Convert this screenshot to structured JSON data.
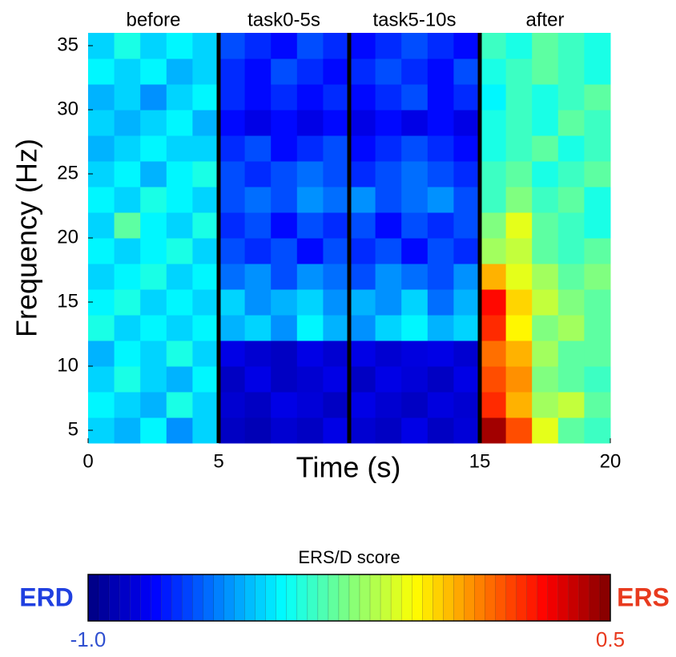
{
  "chart_data": {
    "type": "heatmap",
    "xlabel": "Time (s)",
    "ylabel": "Frequency (Hz)",
    "xlim": [
      0,
      20
    ],
    "ylim": [
      4,
      36
    ],
    "xticks": [
      0,
      5,
      15,
      20
    ],
    "yticks": [
      5,
      10,
      15,
      20,
      25,
      30,
      35
    ],
    "x": [
      0.5,
      1.5,
      2.5,
      3.5,
      4.5,
      5.5,
      6.5,
      7.5,
      8.5,
      9.5,
      10.5,
      11.5,
      12.5,
      13.5,
      14.5,
      15.5,
      16.5,
      17.5,
      18.5,
      19.5
    ],
    "y": [
      5,
      7,
      9,
      11,
      13,
      15,
      17,
      19,
      21,
      23,
      25,
      27,
      29,
      31,
      33,
      35
    ],
    "z": [
      [
        -0.5,
        -0.55,
        -0.45,
        -0.6,
        -0.5,
        -0.9,
        -0.92,
        -0.88,
        -0.9,
        -0.85,
        -0.88,
        -0.9,
        -0.85,
        -0.9,
        -0.87,
        0.45,
        0.2,
        -0.1,
        -0.3,
        -0.35
      ],
      [
        -0.45,
        -0.5,
        -0.55,
        -0.4,
        -0.5,
        -0.88,
        -0.9,
        -0.85,
        -0.87,
        -0.9,
        -0.85,
        -0.88,
        -0.9,
        -0.86,
        -0.88,
        0.25,
        0.05,
        -0.2,
        -0.15,
        -0.3
      ],
      [
        -0.5,
        -0.4,
        -0.5,
        -0.55,
        -0.45,
        -0.9,
        -0.85,
        -0.9,
        -0.88,
        -0.85,
        -0.9,
        -0.85,
        -0.87,
        -0.9,
        -0.85,
        0.2,
        0.1,
        -0.25,
        -0.3,
        -0.35
      ],
      [
        -0.55,
        -0.45,
        -0.5,
        -0.4,
        -0.5,
        -0.85,
        -0.88,
        -0.9,
        -0.85,
        -0.88,
        -0.85,
        -0.88,
        -0.86,
        -0.85,
        -0.88,
        0.15,
        0.05,
        -0.2,
        -0.3,
        -0.3
      ],
      [
        -0.4,
        -0.5,
        -0.45,
        -0.5,
        -0.45,
        -0.55,
        -0.5,
        -0.6,
        -0.45,
        -0.55,
        -0.6,
        -0.5,
        -0.45,
        -0.55,
        -0.5,
        0.25,
        -0.05,
        -0.25,
        -0.2,
        -0.3
      ],
      [
        -0.45,
        -0.4,
        -0.5,
        -0.45,
        -0.5,
        -0.5,
        -0.6,
        -0.55,
        -0.5,
        -0.6,
        -0.55,
        -0.6,
        -0.5,
        -0.65,
        -0.55,
        0.3,
        0.0,
        -0.15,
        -0.25,
        -0.3
      ],
      [
        -0.5,
        -0.45,
        -0.4,
        -0.5,
        -0.45,
        -0.65,
        -0.6,
        -0.7,
        -0.6,
        -0.65,
        -0.7,
        -0.6,
        -0.65,
        -0.7,
        -0.6,
        0.05,
        -0.1,
        -0.2,
        -0.3,
        -0.25
      ],
      [
        -0.45,
        -0.5,
        -0.45,
        -0.4,
        -0.5,
        -0.7,
        -0.75,
        -0.7,
        -0.8,
        -0.7,
        -0.75,
        -0.7,
        -0.8,
        -0.7,
        -0.75,
        -0.2,
        -0.15,
        -0.3,
        -0.35,
        -0.3
      ],
      [
        -0.5,
        -0.3,
        -0.45,
        -0.5,
        -0.4,
        -0.75,
        -0.7,
        -0.8,
        -0.7,
        -0.75,
        -0.7,
        -0.8,
        -0.7,
        -0.75,
        -0.7,
        -0.25,
        -0.1,
        -0.3,
        -0.35,
        -0.4
      ],
      [
        -0.45,
        -0.5,
        -0.4,
        -0.45,
        -0.5,
        -0.7,
        -0.65,
        -0.7,
        -0.6,
        -0.65,
        -0.6,
        -0.7,
        -0.65,
        -0.6,
        -0.7,
        -0.35,
        -0.25,
        -0.35,
        -0.3,
        -0.4
      ],
      [
        -0.5,
        -0.45,
        -0.55,
        -0.45,
        -0.4,
        -0.7,
        -0.75,
        -0.7,
        -0.65,
        -0.7,
        -0.75,
        -0.7,
        -0.65,
        -0.7,
        -0.75,
        -0.35,
        -0.3,
        -0.4,
        -0.35,
        -0.3
      ],
      [
        -0.55,
        -0.5,
        -0.45,
        -0.5,
        -0.5,
        -0.75,
        -0.7,
        -0.8,
        -0.75,
        -0.7,
        -0.8,
        -0.75,
        -0.7,
        -0.75,
        -0.8,
        -0.4,
        -0.35,
        -0.3,
        -0.4,
        -0.35
      ],
      [
        -0.5,
        -0.55,
        -0.5,
        -0.45,
        -0.55,
        -0.8,
        -0.85,
        -0.8,
        -0.85,
        -0.8,
        -0.85,
        -0.8,
        -0.85,
        -0.8,
        -0.85,
        -0.4,
        -0.35,
        -0.4,
        -0.3,
        -0.35
      ],
      [
        -0.55,
        -0.5,
        -0.6,
        -0.5,
        -0.45,
        -0.75,
        -0.8,
        -0.75,
        -0.8,
        -0.75,
        -0.8,
        -0.75,
        -0.7,
        -0.8,
        -0.75,
        -0.45,
        -0.35,
        -0.4,
        -0.35,
        -0.3
      ],
      [
        -0.45,
        -0.5,
        -0.45,
        -0.55,
        -0.5,
        -0.75,
        -0.8,
        -0.7,
        -0.75,
        -0.8,
        -0.75,
        -0.7,
        -0.75,
        -0.8,
        -0.7,
        -0.4,
        -0.35,
        -0.3,
        -0.35,
        -0.4
      ],
      [
        -0.5,
        -0.4,
        -0.5,
        -0.45,
        -0.5,
        -0.7,
        -0.75,
        -0.8,
        -0.7,
        -0.75,
        -0.8,
        -0.75,
        -0.7,
        -0.75,
        -0.8,
        -0.35,
        -0.4,
        -0.3,
        -0.35,
        -0.4
      ]
    ],
    "vlines": [
      5,
      10,
      15
    ],
    "annotations": [
      "before",
      "task0-5s",
      "task5-10s",
      "after"
    ],
    "colorbar_label": "ERS/D score",
    "colorbar_low": "ERD",
    "colorbar_high": "ERS",
    "clim": [
      -1,
      0.5
    ],
    "cticks": [
      {
        "value": -1,
        "label": "-1.0"
      },
      0.5
    ]
  }
}
